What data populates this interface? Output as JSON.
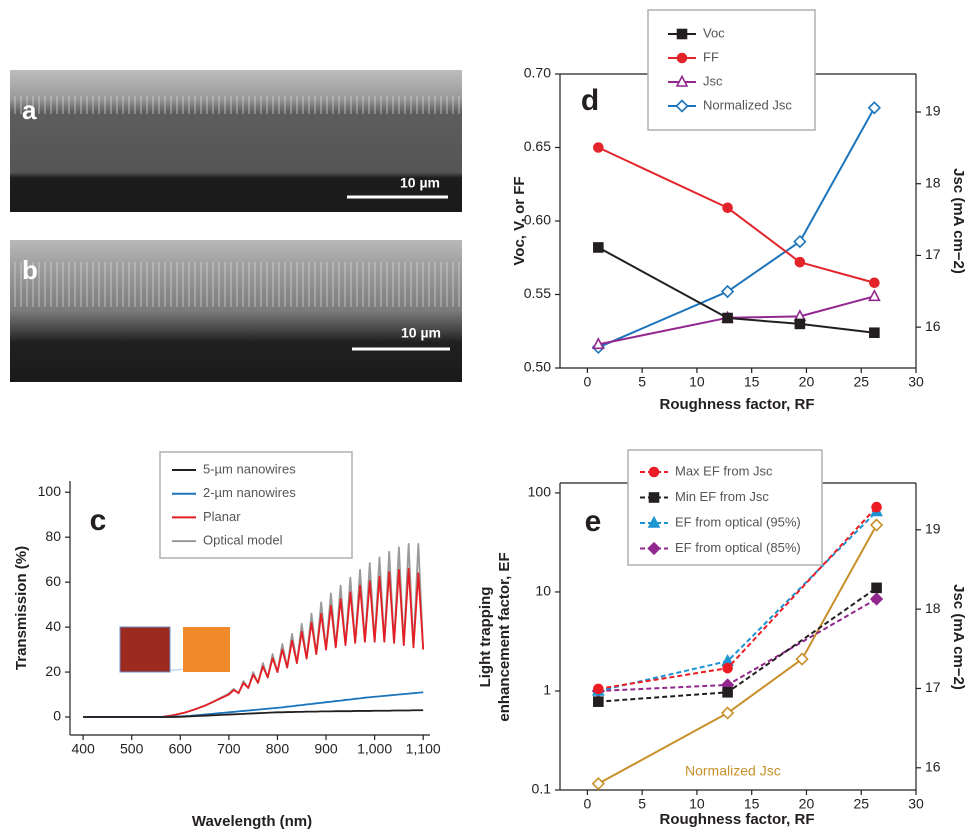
{
  "images": [
    {
      "label": "a",
      "scale_bar": "10 µm"
    },
    {
      "label": "b",
      "scale_bar": "10 µm"
    }
  ],
  "chart_data": [
    {
      "type": "line",
      "panel_label": "c",
      "xlabel": "Wavelength (nm)",
      "ylabel": "Transmission (%)",
      "xlim": [
        373,
        1114
      ],
      "xticks": [
        400,
        500,
        600,
        700,
        800,
        900,
        {
          "value": 1000,
          "label": "1,000"
        },
        {
          "value": 1100,
          "label": "1,100"
        }
      ],
      "ylim": [
        -8,
        105
      ],
      "yticks": [
        0,
        20,
        40,
        60,
        80,
        100
      ],
      "x": [
        400,
        410,
        420,
        430,
        440,
        450,
        460,
        470,
        480,
        490,
        500,
        510,
        520,
        530,
        540,
        550,
        560,
        570,
        580,
        590,
        600,
        610,
        620,
        630,
        640,
        650,
        660,
        670,
        680,
        690,
        700,
        710,
        720,
        730,
        740,
        750,
        760,
        770,
        780,
        790,
        800,
        810,
        820,
        830,
        840,
        850,
        860,
        870,
        880,
        890,
        900,
        910,
        920,
        930,
        940,
        950,
        960,
        970,
        980,
        990,
        1000,
        1010,
        1020,
        1030,
        1040,
        1050,
        1060,
        1070,
        1080,
        1090,
        1100
      ],
      "series": [
        {
          "name": "5-µm nanowires",
          "color": "#231f20",
          "values": [
            0,
            0,
            0,
            0,
            0,
            0,
            0,
            0,
            0,
            0,
            0,
            0,
            0,
            0,
            0,
            0,
            0,
            0,
            0,
            0,
            0.1,
            0.2,
            0.3,
            0.4,
            0.5,
            0.6,
            0.7,
            0.8,
            0.9,
            1.0,
            1.1,
            1.2,
            1.3,
            1.4,
            1.5,
            1.6,
            1.7,
            1.8,
            1.9,
            2.0,
            2.1,
            2.1,
            2.2,
            2.2,
            2.3,
            2.3,
            2.4,
            2.4,
            2.4,
            2.5,
            2.5,
            2.5,
            2.6,
            2.6,
            2.6,
            2.6,
            2.7,
            2.7,
            2.7,
            2.7,
            2.8,
            2.8,
            2.8,
            2.8,
            2.9,
            2.9,
            2.9,
            2.9,
            3.0,
            3.0,
            3.0
          ]
        },
        {
          "name": "2-µm nanowires",
          "color": "#1b75bc",
          "values": [
            0,
            0,
            0,
            0,
            0,
            0,
            0,
            0,
            0,
            0,
            0,
            0,
            0,
            0,
            0,
            0,
            0,
            0,
            0.1,
            0.2,
            0.3,
            0.4,
            0.5,
            0.7,
            0.9,
            1.1,
            1.3,
            1.5,
            1.7,
            1.9,
            2.1,
            2.3,
            2.5,
            2.7,
            2.9,
            3.1,
            3.3,
            3.5,
            3.7,
            3.9,
            4.1,
            4.3,
            4.6,
            4.8,
            5.1,
            5.3,
            5.6,
            5.8,
            6.1,
            6.3,
            6.6,
            6.8,
            7.1,
            7.3,
            7.6,
            7.8,
            8.1,
            8.3,
            8.6,
            8.8,
            9.0,
            9.2,
            9.4,
            9.6,
            9.8,
            10.0,
            10.2,
            10.4,
            10.6,
            10.8,
            11.0
          ]
        },
        {
          "name": "Planar",
          "color": "#e31e24",
          "values": [
            0,
            0,
            0,
            0,
            0,
            0,
            0,
            0,
            0,
            0,
            0,
            0,
            0,
            0,
            0,
            0,
            0,
            0.3,
            0.6,
            1,
            1.5,
            2,
            2.7,
            3.4,
            4.2,
            5,
            6,
            7,
            8,
            9,
            10,
            12,
            10.7,
            15.1,
            13,
            18.8,
            15.3,
            22.5,
            17.7,
            26.2,
            20,
            30,
            22,
            34,
            24,
            38,
            26,
            42,
            28,
            46,
            30,
            49.5,
            31,
            52.5,
            32,
            55.5,
            33,
            58.5,
            33.5,
            60.5,
            33.5,
            62.5,
            33.5,
            64.5,
            33,
            65.5,
            32,
            66,
            31,
            64,
            30
          ]
        },
        {
          "name": "Optical model",
          "color": "#9a9a9a",
          "values": [
            0,
            0,
            0,
            0,
            0,
            0,
            0,
            0,
            0,
            0,
            0,
            0,
            0,
            0,
            0,
            0,
            0,
            0.3,
            0.6,
            1,
            1.5,
            2,
            2.7,
            3.4,
            4.2,
            5,
            6,
            7,
            8.2,
            9.3,
            10.5,
            12.5,
            10.5,
            16,
            12.8,
            20,
            15,
            24,
            17.5,
            28,
            20,
            32.5,
            22,
            37,
            24,
            41.5,
            26,
            46,
            28,
            51,
            30,
            55,
            31,
            58.5,
            32,
            62,
            33,
            65.5,
            33.5,
            68.5,
            33.5,
            71,
            33.5,
            73.5,
            33,
            75.5,
            32,
            77,
            31,
            77,
            30
          ]
        }
      ]
    },
    {
      "type": "line",
      "panel_label": "d",
      "xlabel": "Roughness factor, RF",
      "ylabel": "Voc, V, or FF",
      "y2label": "Jsc (mA cm−2)",
      "xlim": [
        -2.5,
        30
      ],
      "xticks": [
        0,
        5,
        10,
        15,
        20,
        25,
        30
      ],
      "ylim": [
        0.5,
        0.7
      ],
      "yticks": [
        {
          "value": 0.5,
          "label": "0.50"
        },
        0.55,
        {
          "value": 0.6,
          "label": "0.60"
        },
        0.65,
        {
          "value": 0.7,
          "label": "0.70"
        }
      ],
      "y2lim": [
        15.43,
        19.53
      ],
      "y2ticks": [
        16,
        17,
        18,
        19
      ],
      "series": [
        {
          "name": "Voc",
          "color": "#231f20",
          "marker": "square",
          "filled": true,
          "x": [
            1,
            12.8,
            19.4,
            26.2
          ],
          "values": [
            0.582,
            0.534,
            0.53,
            0.524
          ]
        },
        {
          "name": "FF",
          "color": "#e3242b",
          "marker": "circle",
          "filled": true,
          "x": [
            1,
            12.8,
            19.4,
            26.2
          ],
          "values": [
            0.65,
            0.609,
            0.572,
            0.558
          ]
        },
        {
          "name": "Jsc",
          "color": "#92278f",
          "marker": "triangle",
          "filled": false,
          "axis": "y2",
          "x": [
            1,
            12.8,
            19.4,
            26.2
          ],
          "values": [
            15.76,
            16.13,
            16.15,
            16.43
          ]
        },
        {
          "name": "Normalized Jsc",
          "color": "#1c75bc",
          "marker": "diamond",
          "filled": false,
          "x": [
            1,
            12.8,
            19.4,
            26.2
          ],
          "values": [
            0.514,
            0.552,
            0.586,
            0.677
          ]
        }
      ]
    },
    {
      "type": "line",
      "panel_label": "e",
      "xlabel": "Roughness factor, RF",
      "ylabel": [
        "Light trapping",
        "enhancement factor, EF"
      ],
      "y2label": "Jsc (mA cm−2)",
      "xlim": [
        -2.5,
        30
      ],
      "xticks": [
        0,
        5,
        10,
        15,
        20,
        25,
        30
      ],
      "ylog": true,
      "ylim": [
        0.1,
        126
      ],
      "yticks": [
        0.1,
        1,
        10,
        100
      ],
      "y2lim": [
        15.72,
        19.59
      ],
      "y2ticks": [
        16,
        17,
        18,
        19
      ],
      "series": [
        {
          "name": "Max EF from Jsc",
          "color": "#ed1c24",
          "marker": "circle",
          "filled": true,
          "dash": true,
          "x": [
            1,
            12.8,
            26.4
          ],
          "values": [
            1.05,
            1.7,
            72
          ]
        },
        {
          "name": "Min EF from Jsc",
          "color": "#231f20",
          "marker": "square",
          "filled": true,
          "dash": true,
          "x": [
            1,
            12.8,
            26.4
          ],
          "values": [
            0.78,
            0.97,
            11
          ]
        },
        {
          "name": "EF from optical (95%)",
          "color": "#1c94d2",
          "marker": "triangle",
          "filled": true,
          "dash": true,
          "x": [
            1,
            12.8,
            26.4
          ],
          "values": [
            1.0,
            2.0,
            65
          ]
        },
        {
          "name": "EF from optical (85%)",
          "color": "#92278f",
          "marker": "diamond",
          "filled": true,
          "dash": true,
          "x": [
            1,
            12.8,
            26.4
          ],
          "values": [
            1.0,
            1.15,
            8.5
          ]
        },
        {
          "name": "Normalized Jsc",
          "color": "#c8902a",
          "marker": "diamond",
          "filled": false,
          "axis": "y2",
          "label_on_plot": true,
          "x": [
            1,
            12.8,
            19.6,
            26.4
          ],
          "values": [
            15.8,
            16.69,
            17.37,
            19.06
          ]
        }
      ]
    }
  ]
}
